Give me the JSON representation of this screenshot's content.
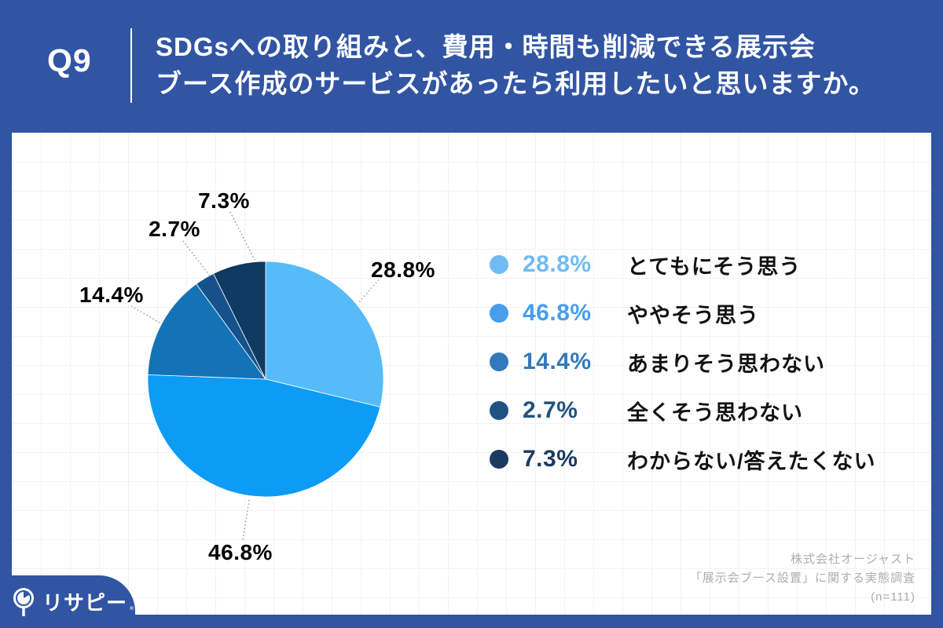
{
  "header": {
    "question_no": "Q9",
    "title_line1": "SDGsへの取り組みと、費用・時間も削減できる展示会",
    "title_line2": "ブース作成のサービスがあったら利用したいと思いますか。"
  },
  "chart_data": {
    "type": "pie",
    "title": "SDGsへの取り組みと、費用・時間も削減できる展示会ブース作成のサービスがあったら利用したいと思いますか。",
    "unit": "%",
    "start_angle_deg": 0,
    "direction": "clockwise",
    "legend_position": "right",
    "categories": [
      "とてもにそう思う",
      "ややそう思う",
      "あまりそう思わない",
      "全くそう思わない",
      "わからない/答えたくない"
    ],
    "values": [
      28.8,
      46.8,
      14.4,
      2.7,
      7.3
    ],
    "items": [
      {
        "label": "とてもにそう思う",
        "value": 28.8,
        "pct_label": "28.8%",
        "color": "#56BBF9",
        "legend_color": "#70BCF2"
      },
      {
        "label": "ややそう思う",
        "value": 46.8,
        "pct_label": "46.8%",
        "color": "#0C9CF6",
        "legend_color": "#469EEC"
      },
      {
        "label": "あまりそう思わない",
        "value": 14.4,
        "pct_label": "14.4%",
        "color": "#1373B6",
        "legend_color": "#327ABD"
      },
      {
        "label": "全くそう思わない",
        "value": 2.7,
        "pct_label": "2.7%",
        "color": "#15528C",
        "legend_color": "#1F5282"
      },
      {
        "label": "わからない/答えたくない",
        "value": 7.3,
        "pct_label": "7.3%",
        "color": "#0F3A62",
        "legend_color": "#1A3A5F"
      }
    ]
  },
  "source": {
    "line1": "株式会社オージャスト",
    "line2": "「展示会ブース設置」に関する実態調査",
    "line3": "(n=111)"
  },
  "logo": {
    "brand": "リサピー"
  },
  "colors": {
    "header_bg": "#3155A3",
    "card_bg": "#FFFFFF",
    "callout_text": "#000000",
    "source_text": "#ADADAD"
  }
}
